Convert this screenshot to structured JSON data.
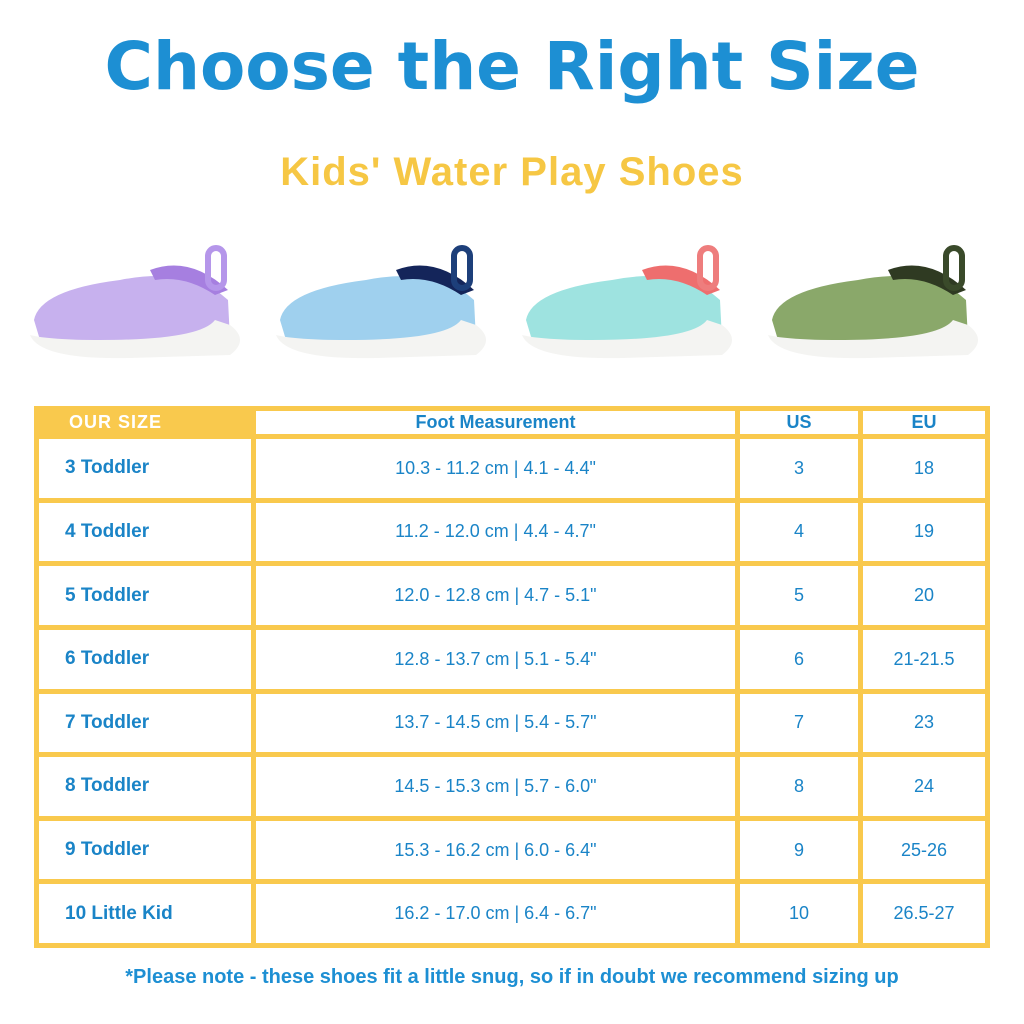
{
  "header": {
    "title": "Choose the Right Size",
    "subtitle": "Kids' Water Play Shoes"
  },
  "table": {
    "columns": [
      "OUR SIZE",
      "Foot Measurement",
      "US",
      "EU"
    ],
    "rows": [
      [
        "3 Toddler",
        "10.3 - 11.2 cm | 4.1 - 4.4\"",
        "3",
        "18"
      ],
      [
        "4 Toddler",
        "11.2 - 12.0 cm | 4.4 - 4.7\"",
        "4",
        "19"
      ],
      [
        "5 Toddler",
        "12.0 - 12.8 cm | 4.7 - 5.1\"",
        "5",
        "20"
      ],
      [
        "6 Toddler",
        "12.8 - 13.7 cm | 5.1 - 5.4\"",
        "6",
        "21-21.5"
      ],
      [
        "7 Toddler",
        "13.7 - 14.5 cm | 5.4 - 5.7\"",
        "7",
        "23"
      ],
      [
        "8 Toddler",
        "14.5 - 15.3 cm | 5.7 - 6.0\"",
        "8",
        "24"
      ],
      [
        "9 Toddler",
        "15.3 - 16.2 cm | 6.0 - 6.4\"",
        "9",
        "25-26"
      ],
      [
        "10 Little Kid",
        "16.2 - 17.0 cm | 6.4 - 6.7\"",
        "10",
        "26.5-27"
      ]
    ]
  },
  "note": "*Please note - these shoes fit a little snug, so if in doubt we recommend sizing up"
}
